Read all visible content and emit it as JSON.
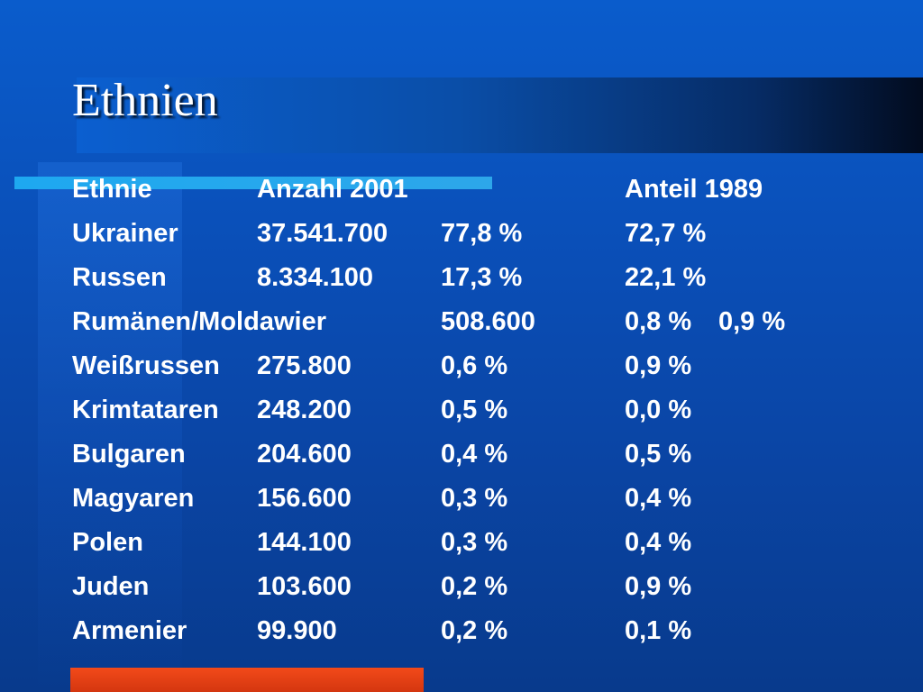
{
  "slide": {
    "title": "Ethnien"
  },
  "table": {
    "headers": [
      "Ethnie",
      "Anzahl 2001",
      "",
      "Anteil 1989"
    ],
    "rows": [
      {
        "ethnie": "Ukrainer",
        "anzahl": "37.541.700",
        "anteil_2001": "77,8 %",
        "anteil_1989": "72,7 %"
      },
      {
        "ethnie": "Russen",
        "anzahl": "8.334.100",
        "anteil_2001": "17,3 %",
        "anteil_1989": "22,1 %"
      },
      {
        "ethnie": "Rumänen/Moldawier",
        "anzahl": "",
        "anteil_2001": "508.600",
        "anteil_1989": "0,8 %",
        "extra": "0,9 %"
      },
      {
        "ethnie": "Weißrussen",
        "anzahl": "275.800",
        "anteil_2001": "0,6 %",
        "anteil_1989": "0,9 %"
      },
      {
        "ethnie": "Krimtataren",
        "anzahl": "248.200",
        "anteil_2001": "0,5 %",
        "anteil_1989": "0,0 %"
      },
      {
        "ethnie": "Bulgaren",
        "anzahl": "204.600",
        "anteil_2001": "0,4 %",
        "anteil_1989": "0,5 %"
      },
      {
        "ethnie": "Magyaren",
        "anzahl": "156.600",
        "anteil_2001": "0,3 %",
        "anteil_1989": "0,4 %"
      },
      {
        "ethnie": "Polen",
        "anzahl": "144.100",
        "anteil_2001": "0,3 %",
        "anteil_1989": "0,4 %"
      },
      {
        "ethnie": "Juden",
        "anzahl": "103.600",
        "anteil_2001": "0,2 %",
        "anteil_1989": "0,9 %"
      },
      {
        "ethnie": "Armenier",
        "anzahl": "99.900",
        "anteil_2001": "0,2 %",
        "anteil_1989": "0,1 %"
      }
    ]
  },
  "colors": {
    "background": "#0a4fb8",
    "accent_light_blue": "#1ea8f0",
    "accent_red": "#e0401a",
    "text": "#ffffff"
  }
}
